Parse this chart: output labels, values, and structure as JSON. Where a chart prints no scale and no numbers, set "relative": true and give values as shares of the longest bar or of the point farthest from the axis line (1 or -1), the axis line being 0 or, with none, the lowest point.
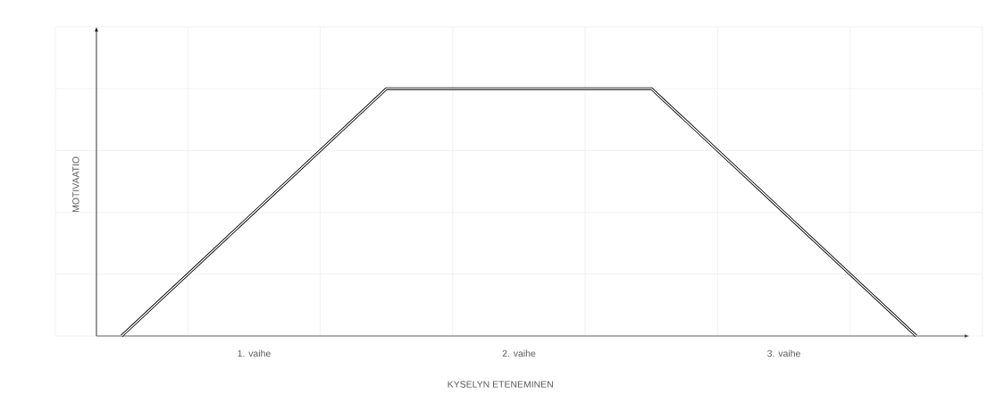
{
  "chart_data": {
    "type": "line",
    "relative": true,
    "xlabel": "KYSELYN ETENEMINEN",
    "ylabel": "MOTIVAATIO",
    "categories": [
      null,
      "1. vaihe",
      null,
      "2. vaihe",
      null,
      "3. vaihe",
      null
    ],
    "values": [
      0,
      0.5,
      1,
      1,
      1,
      0.5,
      0
    ],
    "color": "#000000",
    "line_style": "solid",
    "grid": true
  }
}
